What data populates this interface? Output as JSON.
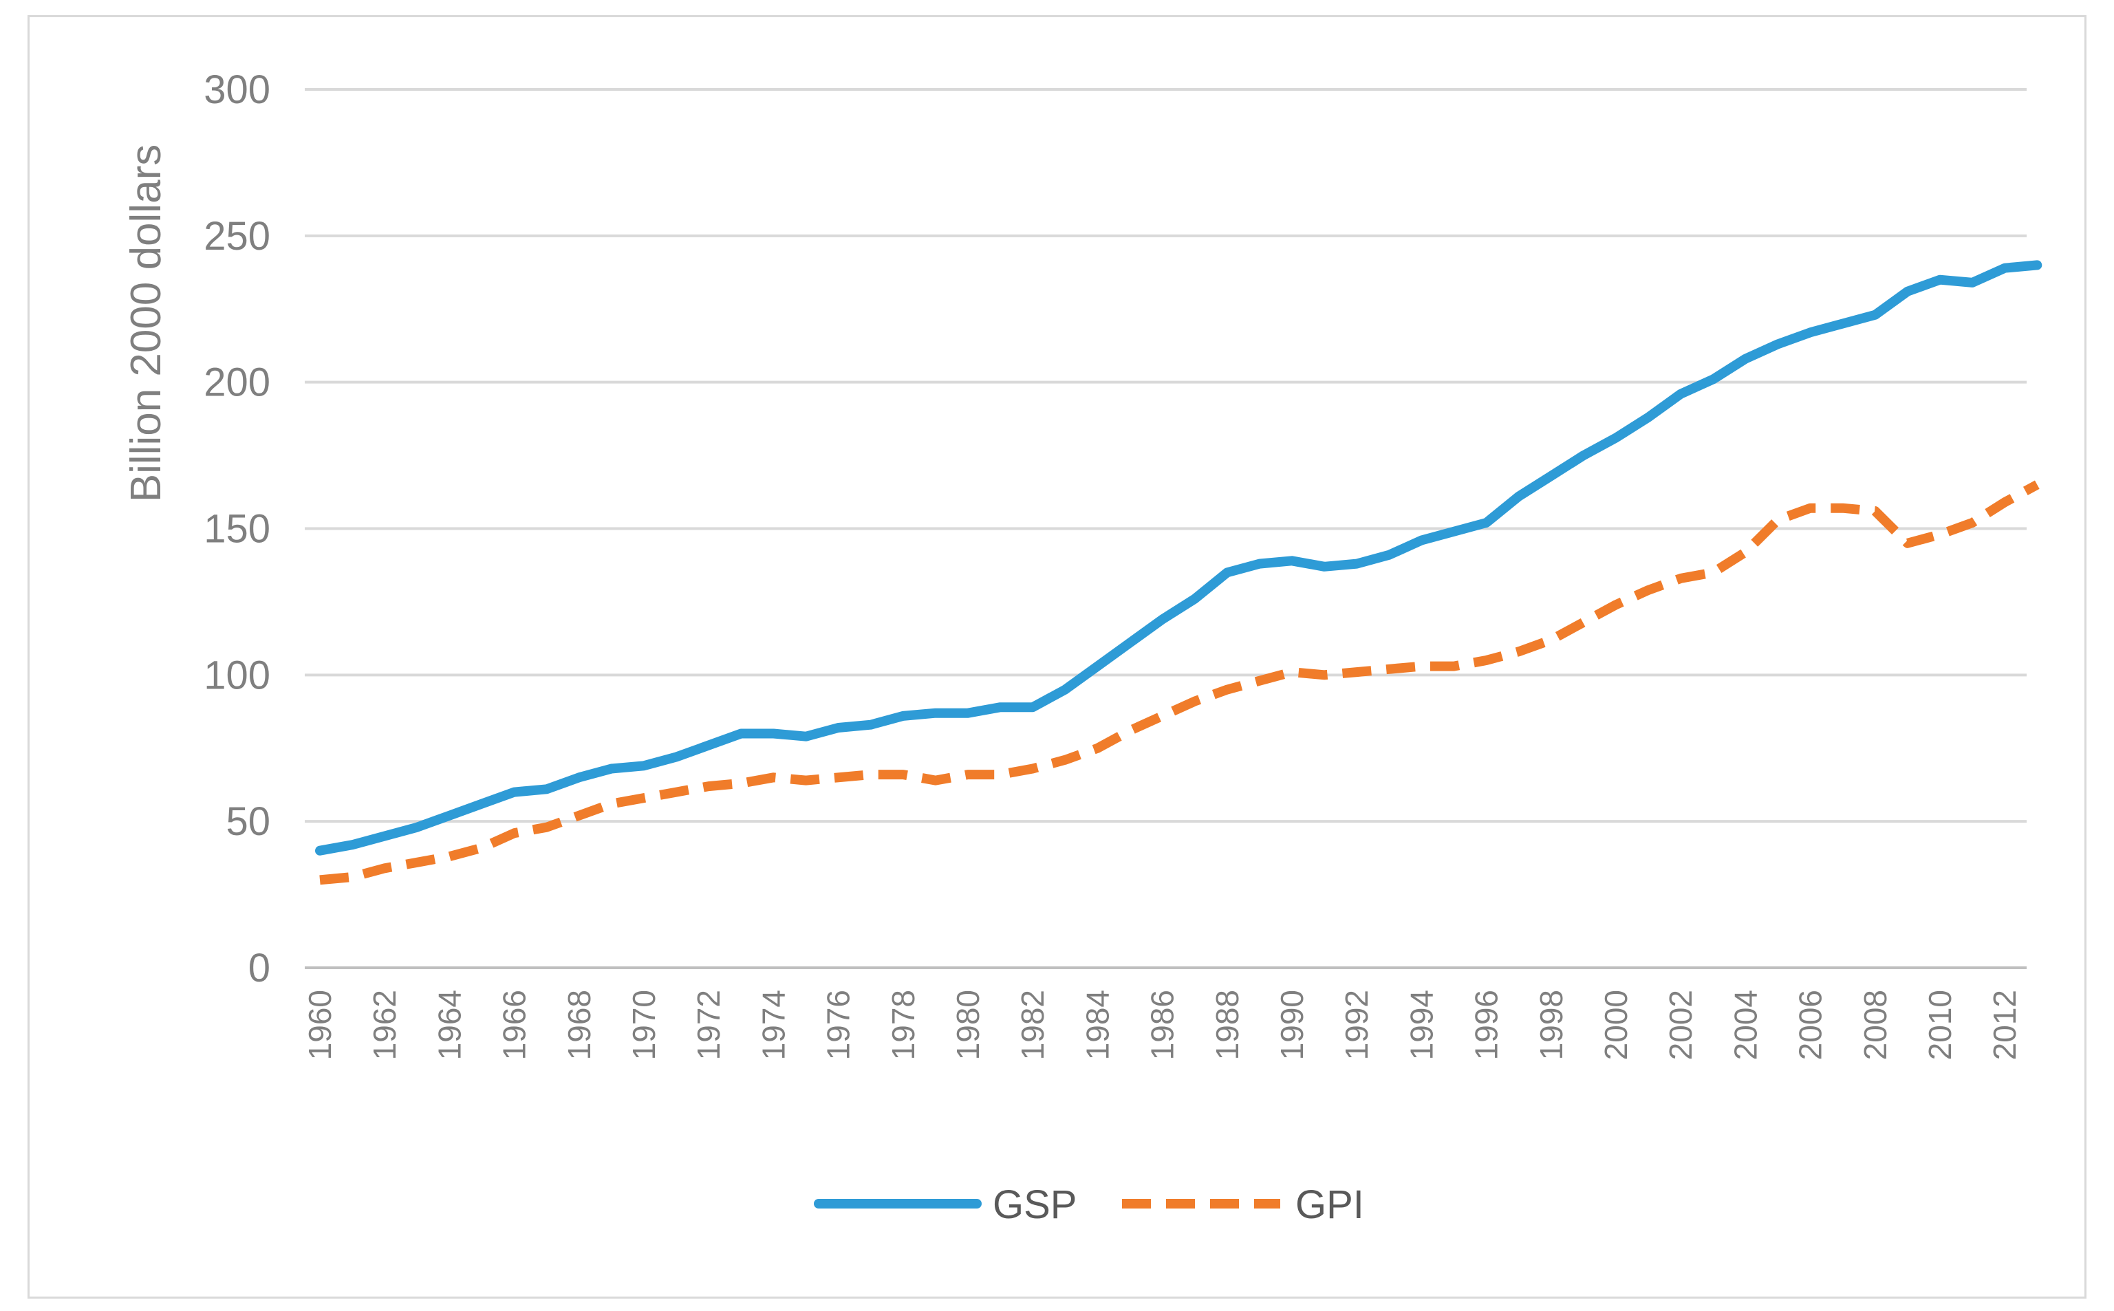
{
  "chart_data": {
    "type": "line",
    "title": "",
    "xlabel": "",
    "ylabel": "Billion 2000 dollars",
    "ylim": [
      0,
      300
    ],
    "yticks": [
      0,
      50,
      100,
      150,
      200,
      250,
      300
    ],
    "grid": true,
    "legend_position": "bottom",
    "x": [
      1960,
      1961,
      1962,
      1963,
      1964,
      1965,
      1966,
      1967,
      1968,
      1969,
      1970,
      1971,
      1972,
      1973,
      1974,
      1975,
      1976,
      1977,
      1978,
      1979,
      1980,
      1981,
      1982,
      1983,
      1984,
      1985,
      1986,
      1987,
      1988,
      1989,
      1990,
      1991,
      1992,
      1993,
      1994,
      1995,
      1996,
      1997,
      1998,
      1999,
      2000,
      2001,
      2002,
      2003,
      2004,
      2005,
      2006,
      2007,
      2008,
      2009,
      2010,
      2011,
      2012,
      2013
    ],
    "x_tick_labels": [
      "1960",
      "1962",
      "1964",
      "1966",
      "1968",
      "1970",
      "1972",
      "1974",
      "1976",
      "1978",
      "1980",
      "1982",
      "1984",
      "1986",
      "1988",
      "1990",
      "1992",
      "1994",
      "1996",
      "1998",
      "2000",
      "2002",
      "2004",
      "2006",
      "2008",
      "2010",
      "2012"
    ],
    "series": [
      {
        "name": "GSP",
        "color": "#2e9bd6",
        "style": "solid",
        "values": [
          40,
          42,
          45,
          48,
          52,
          56,
          60,
          61,
          65,
          68,
          69,
          72,
          76,
          80,
          80,
          79,
          82,
          83,
          86,
          87,
          87,
          89,
          89,
          95,
          103,
          111,
          119,
          126,
          135,
          138,
          139,
          137,
          138,
          141,
          146,
          149,
          152,
          161,
          168,
          175,
          181,
          188,
          196,
          201,
          208,
          213,
          217,
          220,
          223,
          231,
          235,
          234,
          239,
          240
        ]
      },
      {
        "name": "GPI",
        "color": "#f07c2a",
        "style": "dashed",
        "values": [
          30,
          31,
          34,
          36,
          38,
          41,
          46,
          48,
          52,
          56,
          58,
          60,
          62,
          63,
          65,
          64,
          65,
          66,
          66,
          64,
          66,
          66,
          68,
          71,
          75,
          81,
          86,
          91,
          95,
          98,
          101,
          100,
          101,
          102,
          103,
          103,
          105,
          108,
          112,
          118,
          124,
          129,
          133,
          135,
          142,
          153,
          157,
          157,
          156,
          145,
          148,
          152,
          159,
          165
        ]
      }
    ]
  }
}
